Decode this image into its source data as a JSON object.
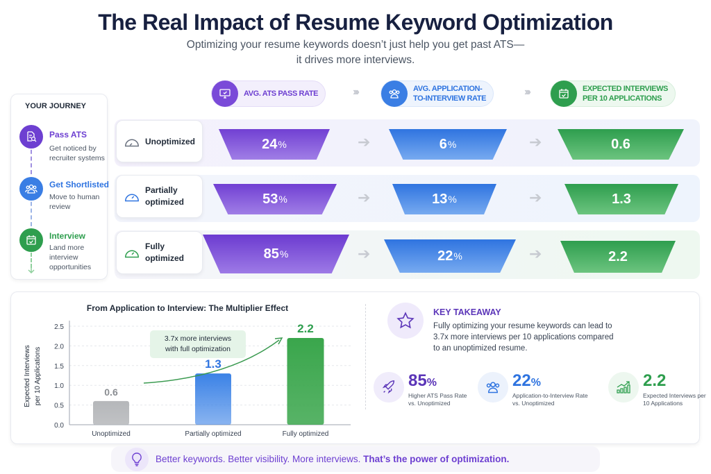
{
  "title": "The Real Impact of Resume Keyword Optimization",
  "subtitle_line1": "Optimizing your resume keywords doesn’t just help you get past ATS—",
  "subtitle_line2": "it drives more interviews.",
  "colors": {
    "purple": "#6d3fd1",
    "blue": "#2f74e0",
    "green": "#34a853",
    "gray": "#9ca3af"
  },
  "journey": {
    "heading": "YOUR JOURNEY",
    "steps": [
      {
        "title": "Pass ATS",
        "desc1": "Get noticed by",
        "desc2": "recruiter systems",
        "icon": "document-search-icon"
      },
      {
        "title": "Get Shortlisted",
        "desc1": "Move to human",
        "desc2": "review",
        "icon": "users-icon"
      },
      {
        "title": "Interview",
        "desc1": "Land more",
        "desc2": "interview",
        "desc3": "opportunities",
        "icon": "calendar-check-icon"
      }
    ]
  },
  "columns": [
    {
      "label1": "AVG. ATS PASS RATE",
      "label2": "",
      "icon": "monitor-check-icon"
    },
    {
      "label1": "AVG. APPLICATION-",
      "label2": "TO-INTERVIEW RATE",
      "icon": "users-icon"
    },
    {
      "label1": "EXPECTED INTERVIEWS",
      "label2": "PER 10 APPLICATIONS",
      "icon": "calendar-check-icon"
    }
  ],
  "rows": [
    {
      "label1": "Unoptimized",
      "label2": "",
      "ats": "24",
      "ats_unit": "%",
      "rate": "6",
      "rate_unit": "%",
      "interviews": "0.6"
    },
    {
      "label1": "Partially",
      "label2": "optimized",
      "ats": "53",
      "ats_unit": "%",
      "rate": "13",
      "rate_unit": "%",
      "interviews": "1.3"
    },
    {
      "label1": "Fully",
      "label2": "optimized",
      "ats": "85",
      "ats_unit": "%",
      "rate": "22",
      "rate_unit": "%",
      "interviews": "2.2"
    }
  ],
  "chart_data": {
    "type": "bar",
    "title": "From Application to Interview: The Multiplier Effect",
    "ylabel_line1": "Expected Interviews",
    "ylabel_line2": "per 10 Applications",
    "categories": [
      "Unoptimized",
      "Partially optimized",
      "Fully optimized"
    ],
    "values": [
      0.6,
      1.3,
      2.2
    ],
    "value_labels": [
      "0.6",
      "1.3",
      "2.2"
    ],
    "ylim": [
      0,
      2.5
    ],
    "yticks": [
      "0.0",
      "0.5",
      "1.0",
      "1.5",
      "2.0",
      "2.5"
    ],
    "grid": true,
    "bar_colors": [
      "#b5b7ba",
      "#3b82e6",
      "#3aa64c"
    ],
    "annotation_line1": "3.7x more interviews",
    "annotation_line2": "with full optimization"
  },
  "takeaway": {
    "heading": "KEY TAKEAWAY",
    "line1": "Fully optimizing your resume keywords can lead to",
    "line2": "3.7x more interviews per 10 applications compared",
    "line3": "to an unoptimized resume.",
    "stats": [
      {
        "value": "85",
        "unit": "%",
        "l1": "Higher ATS Pass Rate",
        "l2": "vs. Unoptimized",
        "icon": "rocket-icon"
      },
      {
        "value": "22",
        "unit": "%",
        "l1": "Application-to-Interview Rate",
        "l2": "vs. Unoptimized",
        "icon": "users-icon"
      },
      {
        "value": "2.2",
        "unit": "",
        "l1": "Expected Interviews per",
        "l2": "10 Applications",
        "icon": "growth-chart-icon"
      }
    ]
  },
  "footer": {
    "part1": "Better keywords. Better visibility. More interviews.",
    "part2": " That’s the power of optimization.",
    "icon": "lightbulb-icon"
  }
}
